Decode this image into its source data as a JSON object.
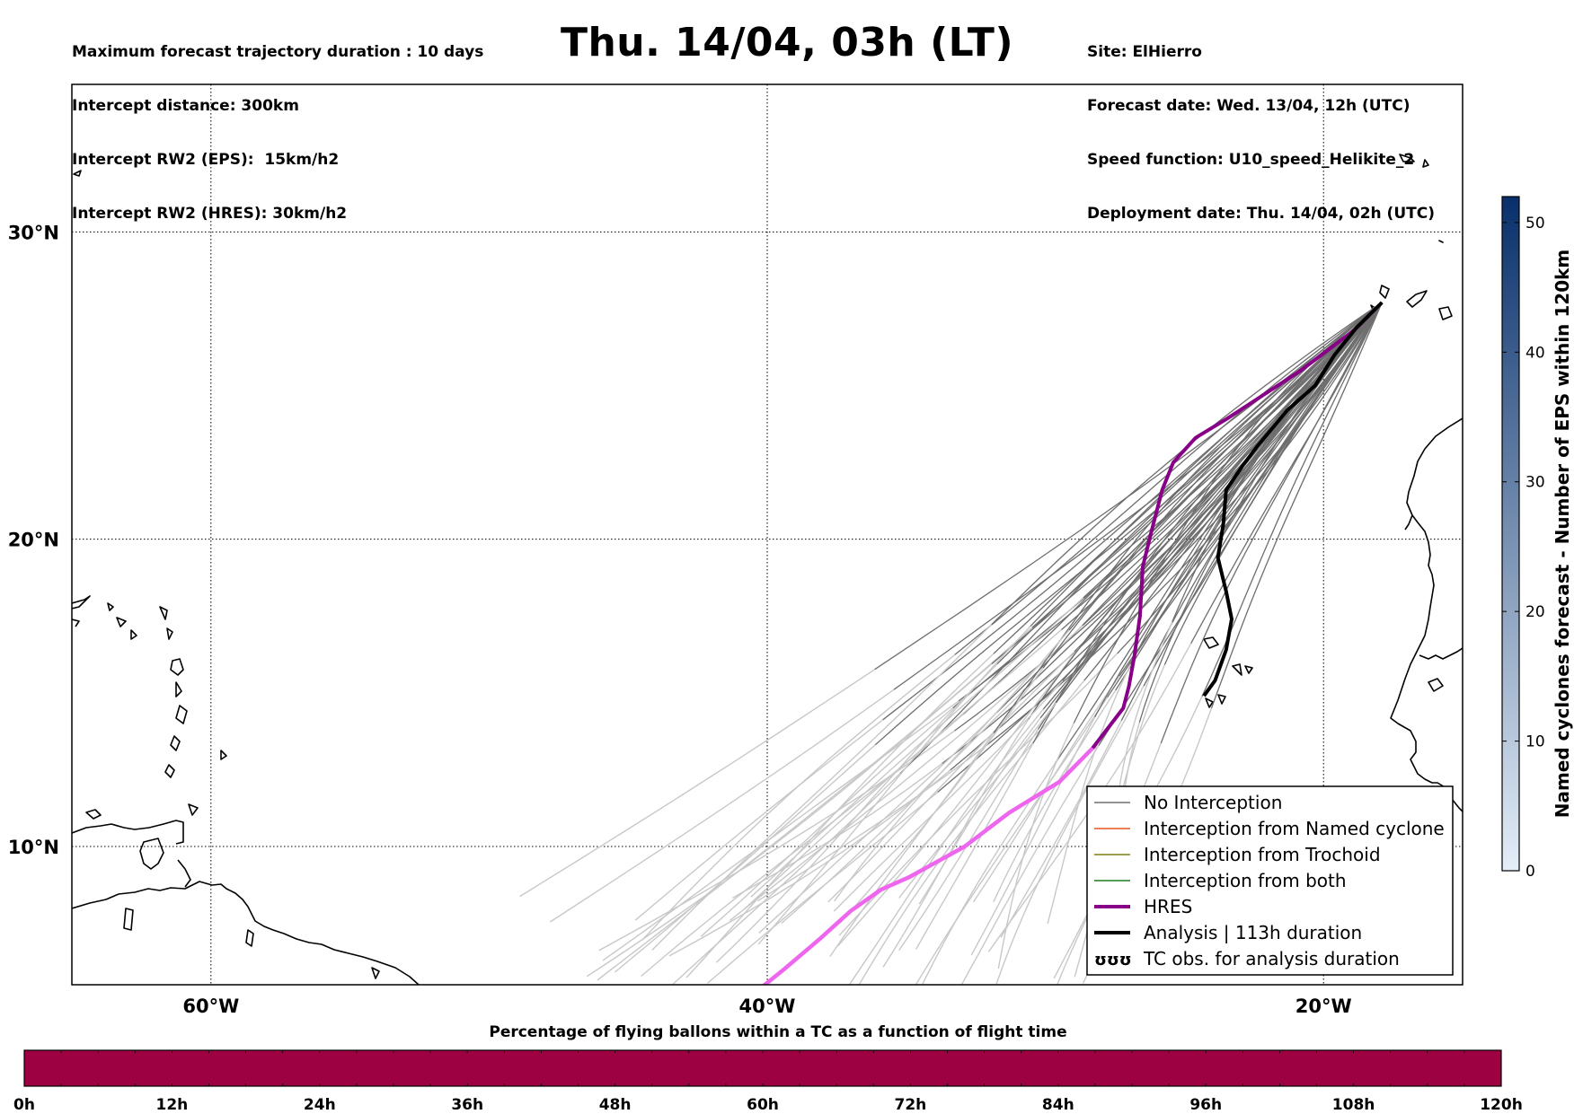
{
  "header": {
    "left_lines": [
      "Maximum forecast trajectory duration : 10 days",
      "Intercept distance: 300km",
      "Intercept RW2 (EPS):  15km/h2",
      "Intercept RW2 (HRES): 30km/h2"
    ],
    "title": "Thu. 14/04, 03h (LT)",
    "right_lines": [
      "Site: ElHierro",
      "Forecast date: Wed. 13/04, 12h (UTC)",
      "Speed function: U10_speed_Helikite_2",
      "Deployment date: Thu. 14/04, 02h (UTC)"
    ]
  },
  "map": {
    "lon_range": [
      -65,
      -15
    ],
    "lat_range": [
      5.5,
      34.8
    ],
    "lon_ticks": [
      {
        "value": -60,
        "label": "60°W"
      },
      {
        "value": -40,
        "label": "40°W"
      },
      {
        "value": -20,
        "label": "20°W"
      }
    ],
    "lat_ticks": [
      {
        "value": 10,
        "label": "10°N"
      },
      {
        "value": 20,
        "label": "20°N"
      },
      {
        "value": 30,
        "label": "30°N"
      }
    ],
    "grid": "dotted",
    "origin": {
      "lon": -17.9,
      "lat": 27.7
    }
  },
  "trajectories": {
    "hres": [
      [
        -17.9,
        27.7
      ],
      [
        -18.9,
        26.8
      ],
      [
        -20.8,
        25.5
      ],
      [
        -23.5,
        23.9
      ],
      [
        -24.6,
        23.3
      ],
      [
        -25.4,
        22.5
      ],
      [
        -25.8,
        21.6
      ],
      [
        -26.2,
        20.2
      ],
      [
        -26.5,
        19.1
      ],
      [
        -26.6,
        17.5
      ],
      [
        -26.8,
        16.2
      ],
      [
        -27.0,
        15.2
      ],
      [
        -27.2,
        14.5
      ],
      [
        -28.3,
        13.2
      ],
      [
        -29.5,
        12.1
      ],
      [
        -31.3,
        11.1
      ],
      [
        -32.9,
        10.0
      ],
      [
        -34.9,
        9.0
      ],
      [
        -35.9,
        8.6
      ],
      [
        -37.0,
        7.9
      ],
      [
        -38.1,
        7.0
      ],
      [
        -39.4,
        6.0
      ],
      [
        -40.5,
        5.2
      ]
    ],
    "analysis": [
      [
        -17.9,
        27.7
      ],
      [
        -18.8,
        26.9
      ],
      [
        -19.6,
        26.0
      ],
      [
        -20.3,
        25.0
      ],
      [
        -21.3,
        24.2
      ],
      [
        -22.4,
        23.0
      ],
      [
        -22.9,
        22.4
      ],
      [
        -23.5,
        21.6
      ],
      [
        -23.6,
        20.5
      ],
      [
        -23.8,
        19.4
      ],
      [
        -23.5,
        18.3
      ],
      [
        -23.3,
        17.4
      ],
      [
        -23.5,
        16.4
      ],
      [
        -23.9,
        15.4
      ],
      [
        -24.3,
        14.9
      ]
    ],
    "eps_member_count": 56
  },
  "legend": [
    {
      "label": "No Interception",
      "color": "#6e6e6e",
      "width": 1.5
    },
    {
      "label": "Interception from Named cyclone",
      "color": "#e8541a",
      "width": 1.5
    },
    {
      "label": "Interception from Trochoid",
      "color": "#7f7f1a",
      "width": 1.5
    },
    {
      "label": "Interception from both",
      "color": "#1f7f1f",
      "width": 1.5
    },
    {
      "label": "HRES",
      "color": "#880088",
      "width": 4
    },
    {
      "label": "Analysis | 113h duration",
      "color": "#000000",
      "width": 4
    },
    {
      "label": "TC obs. for analysis duration",
      "color": "#000000",
      "width": 0,
      "icon": "ʊʊʊ"
    }
  ],
  "colorbar": {
    "label": "Named cyclones forecast - Number of EPS within 120km",
    "min": 0,
    "max": 52,
    "ticks": [
      "0",
      "10",
      "20",
      "30",
      "40",
      "50"
    ],
    "tick_values": [
      0,
      10,
      20,
      30,
      40,
      50
    ],
    "color_low": "#e4eef8",
    "color_high": "#08306b"
  },
  "bottom_bar": {
    "title": "Percentage of flying ballons within a TC as a function of flight time",
    "ticks": [
      "0h",
      "12h",
      "24h",
      "36h",
      "48h",
      "60h",
      "72h",
      "84h",
      "96h",
      "108h",
      "120h"
    ],
    "max_hours": 120,
    "color": "#9e0142"
  },
  "colors": {
    "eps_near": "#6e6e6e",
    "eps_far": "#c8c8c8",
    "hres_far": "#ee66ee",
    "coast": "#000000"
  }
}
